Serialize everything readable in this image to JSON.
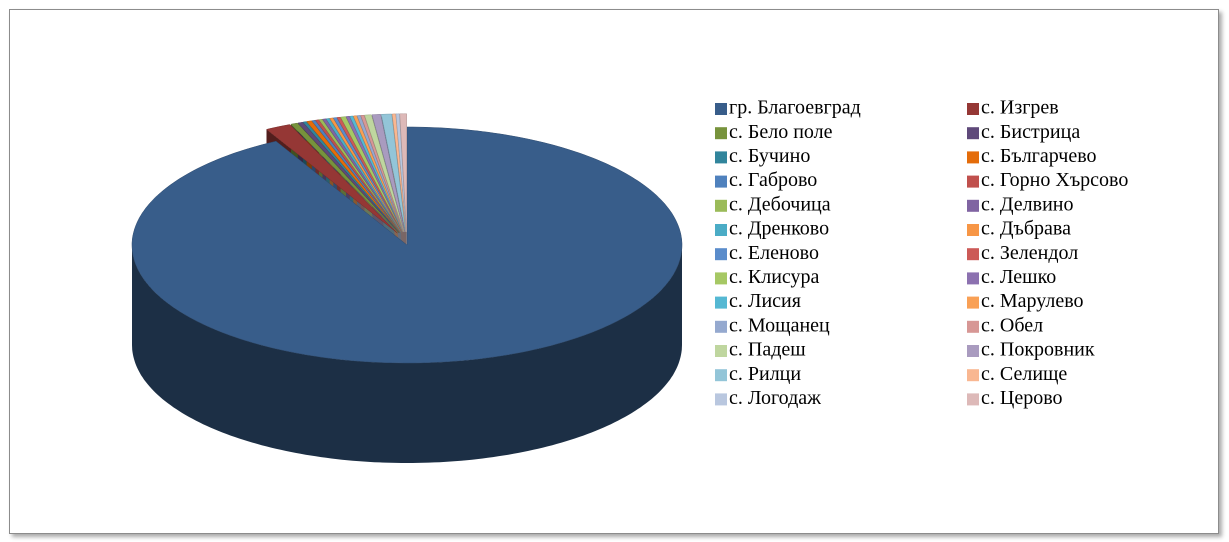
{
  "chart_data": {
    "type": "pie",
    "three_d": true,
    "categories": [
      "гр. Благоевград",
      "с. Изгрев",
      "с. Бело поле",
      "с. Бистрица",
      "с. Бучино",
      "с. Българчево",
      "с. Габрово",
      "с. Горно Хърсово",
      "с. Дебочица",
      "с. Делвино",
      "с. Дренково",
      "с. Дъбрава",
      "с. Еленово",
      "с. Зелендол",
      "с. Клисура",
      "с. Лешко",
      "с. Лисия",
      "с. Марулево",
      "с. Мощанец",
      "с. Обел",
      "с. Падеш",
      "с. Покровник",
      "с. Рилци",
      "с. Селище",
      "с. Логодаж",
      "с. Церово"
    ],
    "values": [
      92.1,
      1.5,
      0.4,
      0.3,
      0.2,
      0.3,
      0.2,
      0.2,
      0.2,
      0.2,
      0.2,
      0.2,
      0.2,
      0.2,
      0.3,
      0.2,
      0.2,
      0.2,
      0.2,
      0.2,
      0.4,
      0.5,
      0.6,
      0.2,
      0.2,
      0.4
    ],
    "colors": [
      "#385d8a",
      "#953735",
      "#77933c",
      "#5f497a",
      "#31859c",
      "#e46c0a",
      "#4f81bd",
      "#c0504d",
      "#9bbb59",
      "#8064a2",
      "#4bacc6",
      "#f79646",
      "#5a8ccb",
      "#cc5a57",
      "#a6c864",
      "#8c71b0",
      "#55b8d3",
      "#f9a055",
      "#95a9cf",
      "#d79795",
      "#bfd69f",
      "#a99bbf",
      "#93c5d8",
      "#f9b791",
      "#b9c7df",
      "#ddb9b8"
    ],
    "legend": "right"
  }
}
